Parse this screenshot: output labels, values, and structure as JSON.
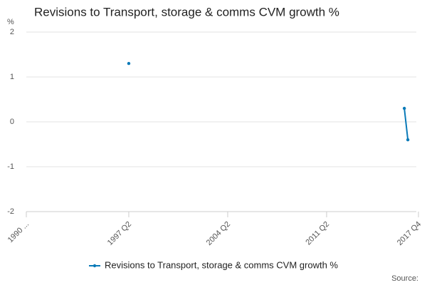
{
  "chart_data": {
    "type": "line",
    "title": "Revisions to Transport, storage & comms CVM growth %",
    "y_label": "%",
    "source": "Source:",
    "categories": [
      "1990 ...",
      null,
      null,
      null,
      null,
      null,
      null,
      null,
      null,
      null,
      null,
      null,
      null,
      null,
      null,
      null,
      null,
      null,
      null,
      null,
      null,
      null,
      null,
      null,
      null,
      null,
      null,
      null,
      null,
      "1997 Q2",
      null,
      null,
      null,
      null,
      null,
      null,
      null,
      null,
      null,
      null,
      null,
      null,
      null,
      null,
      null,
      null,
      null,
      null,
      null,
      null,
      null,
      null,
      null,
      null,
      null,
      null,
      null,
      "2004 Q2",
      null,
      null,
      null,
      null,
      null,
      null,
      null,
      null,
      null,
      null,
      null,
      null,
      null,
      null,
      null,
      null,
      null,
      null,
      null,
      null,
      null,
      null,
      null,
      null,
      null,
      null,
      null,
      "2011 Q2",
      null,
      null,
      null,
      null,
      null,
      null,
      null,
      null,
      null,
      null,
      null,
      null,
      null,
      null,
      null,
      null,
      null,
      null,
      null,
      null,
      null,
      null,
      null,
      null,
      null,
      "2017 Q4"
    ],
    "series": [
      {
        "name": "Revisions to Transport, storage & comms CVM growth %",
        "color": "#0a7ab8",
        "values": [
          null,
          null,
          null,
          null,
          null,
          null,
          null,
          null,
          null,
          null,
          null,
          null,
          null,
          null,
          null,
          null,
          null,
          null,
          null,
          null,
          null,
          null,
          null,
          null,
          null,
          null,
          null,
          null,
          null,
          1.3,
          null,
          null,
          null,
          null,
          null,
          null,
          null,
          null,
          null,
          null,
          null,
          null,
          null,
          null,
          null,
          null,
          null,
          null,
          null,
          null,
          null,
          null,
          null,
          null,
          null,
          null,
          null,
          null,
          null,
          null,
          null,
          null,
          null,
          null,
          null,
          null,
          null,
          null,
          null,
          null,
          null,
          null,
          null,
          null,
          null,
          null,
          null,
          null,
          null,
          null,
          null,
          null,
          null,
          null,
          null,
          null,
          null,
          null,
          null,
          null,
          null,
          null,
          null,
          null,
          null,
          null,
          null,
          null,
          null,
          null,
          null,
          null,
          null,
          null,
          null,
          null,
          null,
          0.3,
          -0.4,
          null,
          null,
          null
        ]
      }
    ],
    "ylim": [
      -2,
      2
    ],
    "yticks": [
      -2,
      -1,
      0,
      1,
      2
    ],
    "grid": true
  }
}
